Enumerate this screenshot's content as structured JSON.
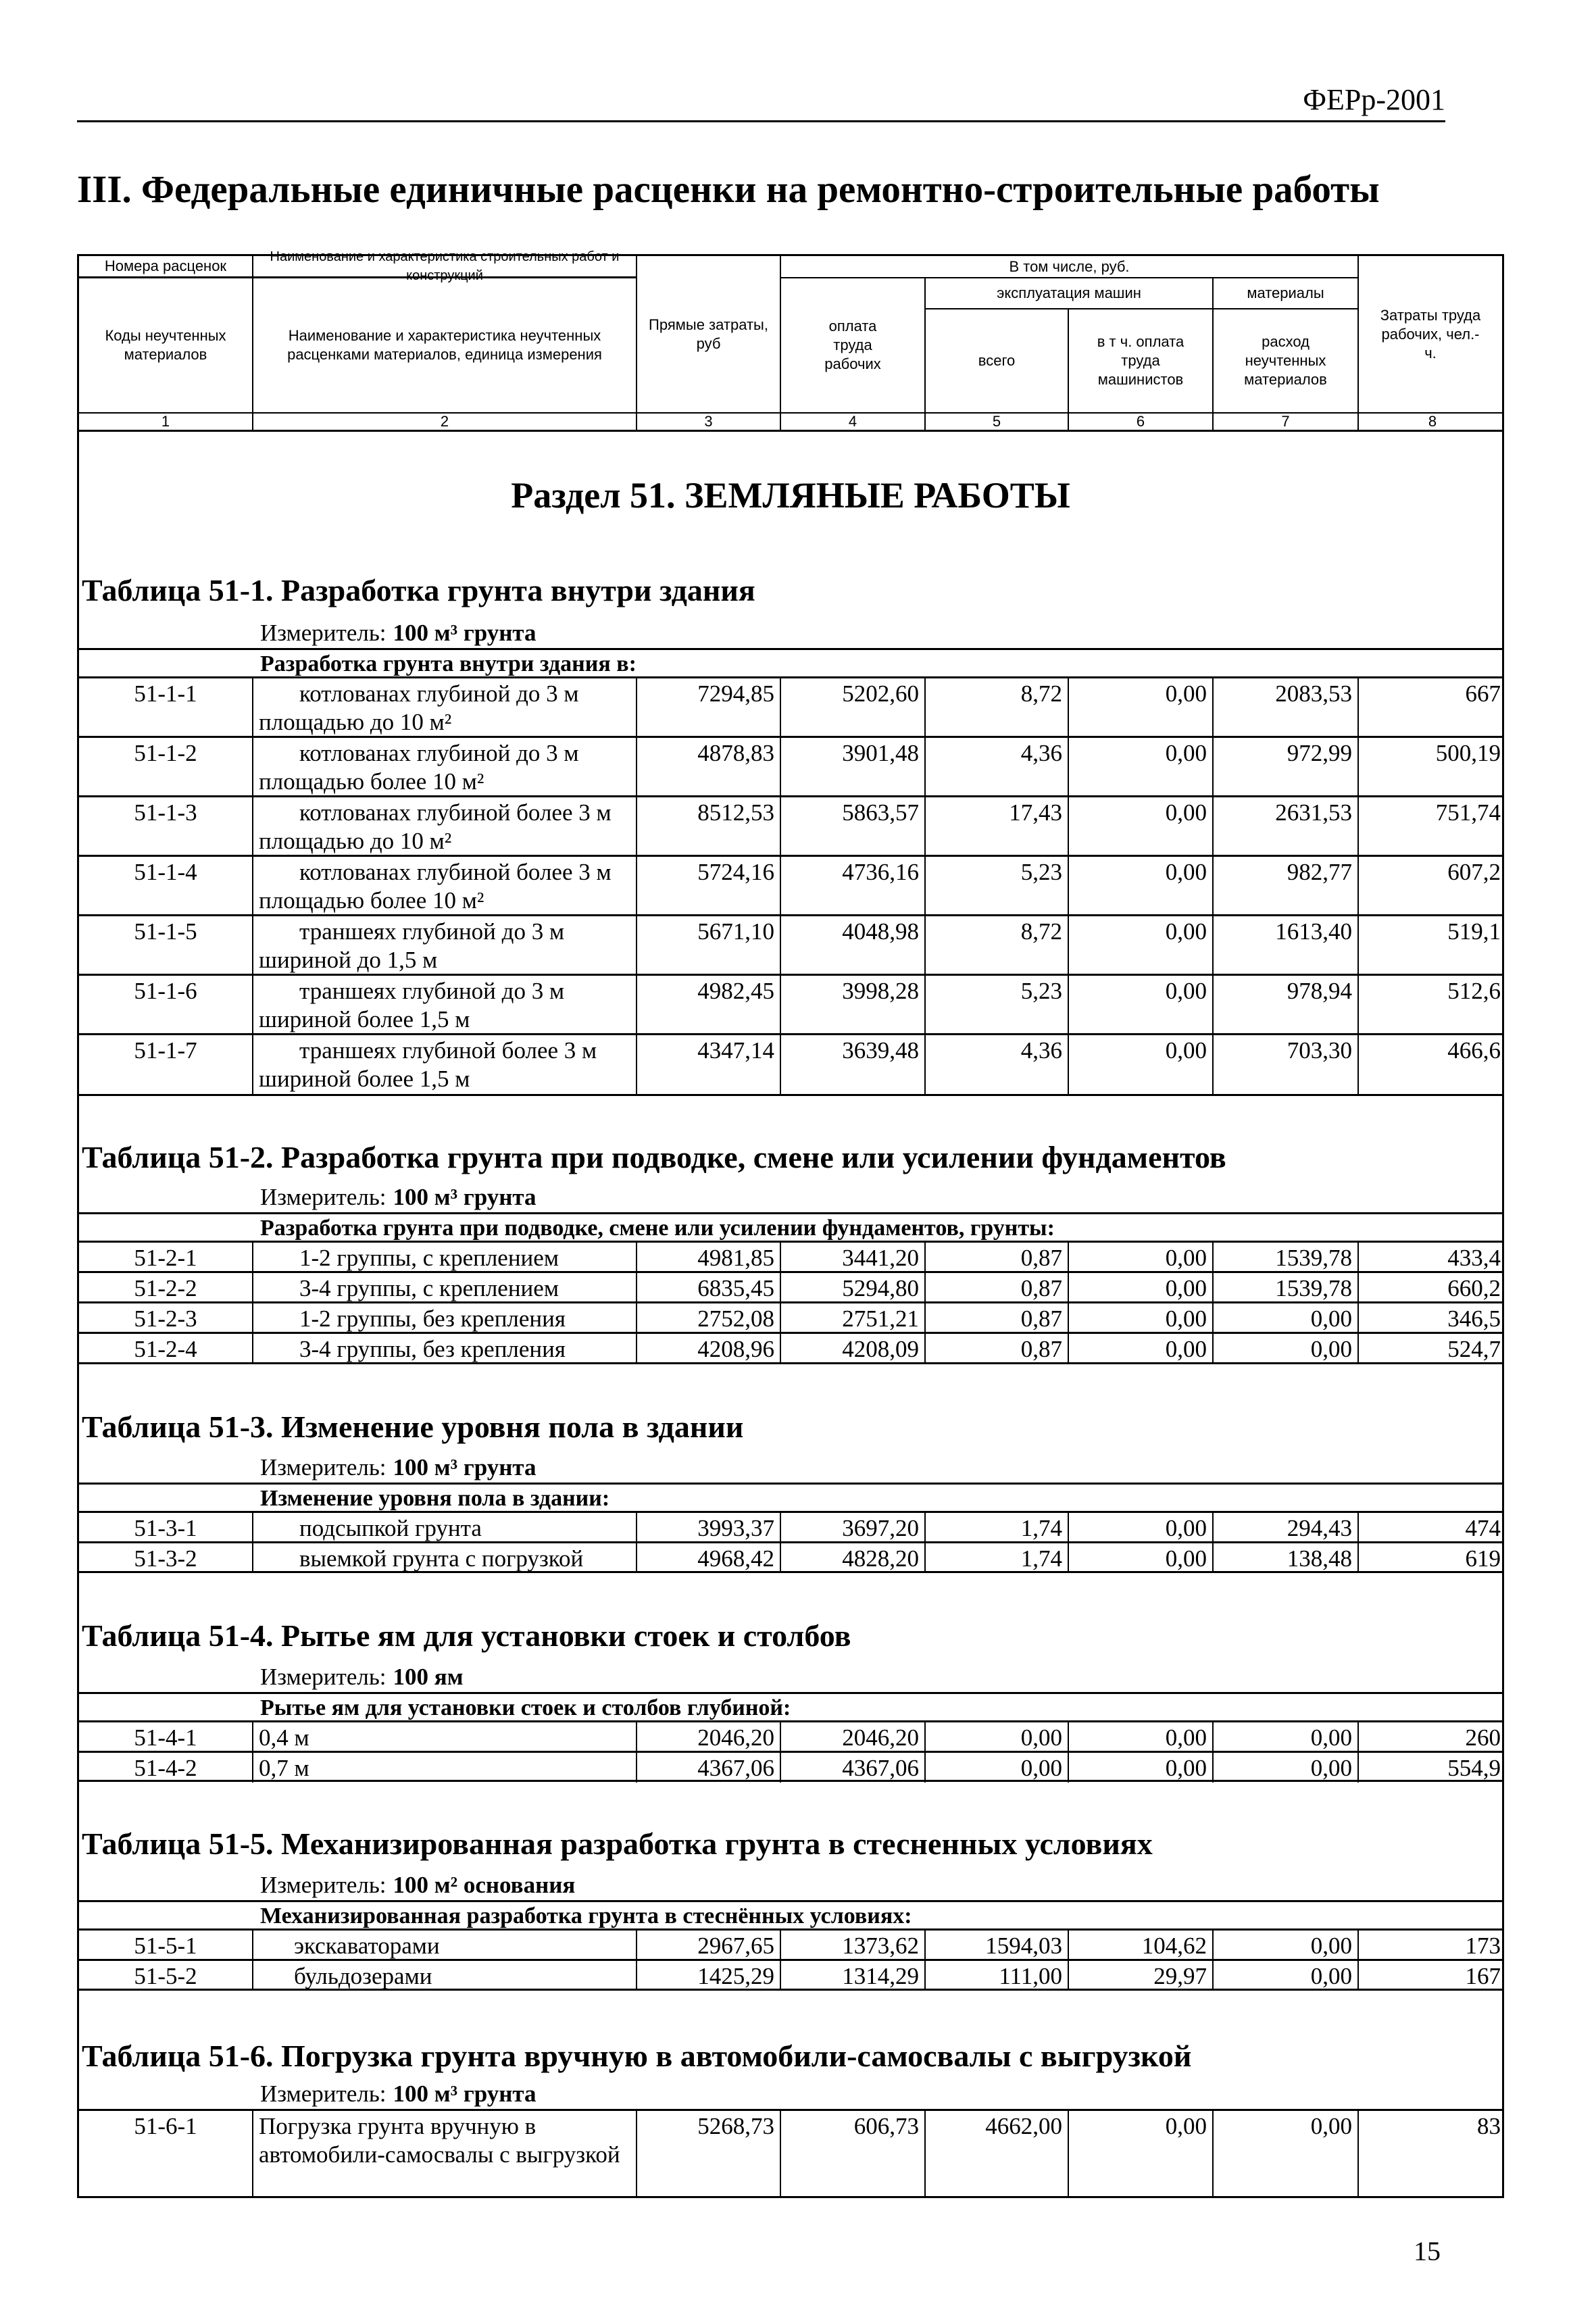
{
  "running_header": "ФЕРр-2001",
  "title": "III. Федеральные единичные расценки на ремонтно-строительные работы",
  "header": {
    "col1_top": "Номера расценок",
    "col1_bottom": "Коды неучтенных материалов",
    "col2_top": "Наименование и характеристика строительных работ и конструкций",
    "col2_bottom": "Наименование и характеристика неучтенных расценками материалов, единица измерения",
    "col3": "Прямые затраты, руб",
    "including": "В том числе, руб.",
    "col4": "оплата труда рабочих",
    "machines": "эксплуатация машин",
    "col5": "всего",
    "col6": "в т ч. оплата труда машинистов",
    "materials": "материалы",
    "col7": "расход неучтенных материалов",
    "col8": "Затраты труда рабочих, чел.-ч.",
    "numbers": [
      "1",
      "2",
      "3",
      "4",
      "5",
      "6",
      "7",
      "8"
    ]
  },
  "section_title": "Раздел 51. ЗЕМЛЯНЫЕ РАБОТЫ",
  "tables": [
    {
      "title": "Таблица 51-1. Разработка грунта внутри здания",
      "meter_label": "Измеритель:",
      "meter_value": "100 м³ грунта",
      "group": "Разработка грунта внутри здания в:",
      "rows": [
        {
          "code": "51-1-1",
          "name": "котлованах глубиной до 3 м площадью до 10 м²",
          "values": [
            "7294,85",
            "5202,60",
            "8,72",
            "0,00",
            "2083,53",
            "667"
          ]
        },
        {
          "code": "51-1-2",
          "name": "котлованах глубиной до 3 м площадью более 10 м²",
          "values": [
            "4878,83",
            "3901,48",
            "4,36",
            "0,00",
            "972,99",
            "500,19"
          ]
        },
        {
          "code": "51-1-3",
          "name": "котлованах глубиной более 3 м площадью до 10 м²",
          "values": [
            "8512,53",
            "5863,57",
            "17,43",
            "0,00",
            "2631,53",
            "751,74"
          ]
        },
        {
          "code": "51-1-4",
          "name": "котлованах глубиной более 3 м площадью более 10 м²",
          "values": [
            "5724,16",
            "4736,16",
            "5,23",
            "0,00",
            "982,77",
            "607,2"
          ]
        },
        {
          "code": "51-1-5",
          "name": "траншеях глубиной до 3 м шириной до 1,5 м",
          "values": [
            "5671,10",
            "4048,98",
            "8,72",
            "0,00",
            "1613,40",
            "519,1"
          ]
        },
        {
          "code": "51-1-6",
          "name": "траншеях глубиной до 3 м шириной более 1,5 м",
          "values": [
            "4982,45",
            "3998,28",
            "5,23",
            "0,00",
            "978,94",
            "512,6"
          ]
        },
        {
          "code": "51-1-7",
          "name": "траншеях глубиной более 3 м шириной более 1,5 м",
          "values": [
            "4347,14",
            "3639,48",
            "4,36",
            "0,00",
            "703,30",
            "466,6"
          ]
        }
      ]
    },
    {
      "title": "Таблица 51-2. Разработка грунта при подводке, смене или усилении фундаментов",
      "meter_label": "Измеритель:",
      "meter_value": "100 м³ грунта",
      "group": "Разработка грунта при подводке, смене или усилении фундаментов, грунты:",
      "rows": [
        {
          "code": "51-2-1",
          "name": "1-2 группы, с креплением",
          "values": [
            "4981,85",
            "3441,20",
            "0,87",
            "0,00",
            "1539,78",
            "433,4"
          ]
        },
        {
          "code": "51-2-2",
          "name": "3-4 группы, с креплением",
          "values": [
            "6835,45",
            "5294,80",
            "0,87",
            "0,00",
            "1539,78",
            "660,2"
          ]
        },
        {
          "code": "51-2-3",
          "name": "1-2 группы, без крепления",
          "values": [
            "2752,08",
            "2751,21",
            "0,87",
            "0,00",
            "0,00",
            "346,5"
          ]
        },
        {
          "code": "51-2-4",
          "name": "3-4 группы, без крепления",
          "values": [
            "4208,96",
            "4208,09",
            "0,87",
            "0,00",
            "0,00",
            "524,7"
          ]
        }
      ]
    },
    {
      "title": "Таблица 51-3. Изменение уровня пола в здании",
      "meter_label": "Измеритель:",
      "meter_value": "100 м³ грунта",
      "group": "Изменение уровня пола в здании:",
      "rows": [
        {
          "code": "51-3-1",
          "name": "подсыпкой грунта",
          "values": [
            "3993,37",
            "3697,20",
            "1,74",
            "0,00",
            "294,43",
            "474"
          ]
        },
        {
          "code": "51-3-2",
          "name": "выемкой грунта с погрузкой",
          "values": [
            "4968,42",
            "4828,20",
            "1,74",
            "0,00",
            "138,48",
            "619"
          ]
        }
      ]
    },
    {
      "title": "Таблица 51-4. Рытье ям для установки стоек и столбов",
      "meter_label": "Измеритель:",
      "meter_value": "100 ям",
      "group": "Рытье ям для установки стоек и столбов глубиной:",
      "rows": [
        {
          "code": "51-4-1",
          "name": "0,4 м",
          "values": [
            "2046,20",
            "2046,20",
            "0,00",
            "0,00",
            "0,00",
            "260"
          ]
        },
        {
          "code": "51-4-2",
          "name": "0,7 м",
          "values": [
            "4367,06",
            "4367,06",
            "0,00",
            "0,00",
            "0,00",
            "554,9"
          ]
        }
      ]
    },
    {
      "title": "Таблица 51-5. Механизированная разработка грунта в стесненных условиях",
      "meter_label": "Измеритель:",
      "meter_value": "100 м² основания",
      "group": "Механизированная разработка грунта в стеснённых условиях:",
      "rows": [
        {
          "code": "51-5-1",
          "name": "экскаваторами",
          "values": [
            "2967,65",
            "1373,62",
            "1594,03",
            "104,62",
            "0,00",
            "173"
          ]
        },
        {
          "code": "51-5-2",
          "name": "бульдозерами",
          "values": [
            "1425,29",
            "1314,29",
            "111,00",
            "29,97",
            "0,00",
            "167"
          ]
        }
      ]
    },
    {
      "title": "Таблица 51-6. Погрузка грунта вручную в автомобили-самосвалы с выгрузкой",
      "meter_label": "Измеритель:",
      "meter_value": "100 м³ грунта",
      "group": "",
      "rows": [
        {
          "code": "51-6-1",
          "name": "Погрузка грунта вручную в автомобили-самосвалы с выгрузкой",
          "values": [
            "5268,73",
            "606,73",
            "4662,00",
            "0,00",
            "0,00",
            "83"
          ]
        }
      ]
    }
  ],
  "page_number": "15"
}
